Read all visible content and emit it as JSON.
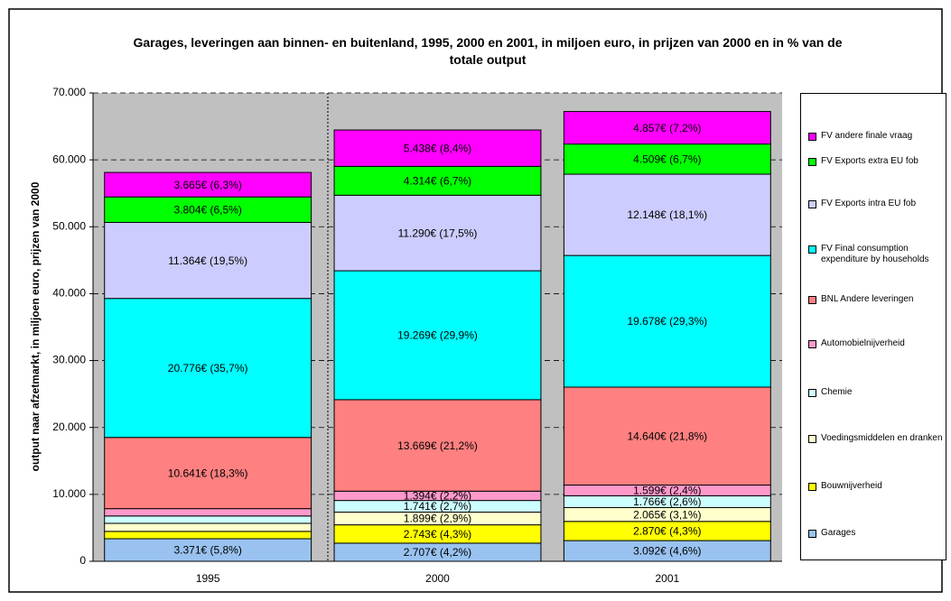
{
  "chart_data": {
    "type": "stacked-bar",
    "title": "Garages, leveringen aan binnen- en buitenland, 1995, 2000 en 2001, in miljoen euro, in prijzen van 2000 en in % van de totale output",
    "y_label": "output naar afzetmarkt, in miljoen euro, prijzen van 2000",
    "categories": [
      "1995",
      "2000",
      "2001"
    ],
    "ylim": [
      0,
      70000
    ],
    "yticks": [
      0,
      {
        "value": 10000,
        "label": "10.000"
      },
      {
        "value": 20000,
        "label": "20.000"
      },
      {
        "value": 30000,
        "label": "30.000"
      },
      {
        "value": 40000,
        "label": "40.000"
      },
      {
        "value": 50000,
        "label": "50.000"
      },
      {
        "value": 60000,
        "label": "60.000"
      },
      {
        "value": 70000,
        "label": "70.000"
      }
    ],
    "grid": true,
    "series": [
      {
        "name": "Garages",
        "color": "#99c2f0",
        "values": [
          3371,
          2707,
          3092
        ],
        "value_labels": [
          "3.371€ (5,8%)",
          "2.707€ (4,2%)",
          "3.092€ (4,6%)"
        ]
      },
      {
        "name": "Bouwnijverheid",
        "color": "#ffff00",
        "values": [
          1100,
          2743,
          2870
        ],
        "value_labels": [
          null,
          "2.743€ (4,3%)",
          "2.870€ (4,3%)"
        ]
      },
      {
        "name": "Voedingsmiddelen en dranken",
        "color": "#ffffcc",
        "values": [
          1200,
          1899,
          2065
        ],
        "value_labels": [
          null,
          "1.899€ (2,9%)",
          "2.065€ (3,1%)"
        ]
      },
      {
        "name": "Chemie",
        "color": "#ccffff",
        "values": [
          1100,
          1741,
          1766
        ],
        "value_labels": [
          null,
          "1.741€ (2,7%)",
          "1.766€ (2,6%)"
        ]
      },
      {
        "name": "Automobielnijverheid",
        "color": "#ff99cc",
        "values": [
          1100,
          1394,
          1599
        ],
        "value_labels": [
          null,
          "1.394€ (2,2%)",
          "1.599€ (2,4%)"
        ]
      },
      {
        "name": "BNL Andere leveringen",
        "color": "#ff8080",
        "values": [
          10641,
          13669,
          14640
        ],
        "value_labels": [
          "10.641€ (18,3%)",
          "13.669€ (21,2%)",
          "14.640€ (21,8%)"
        ]
      },
      {
        "name": "FV Final consumption expenditure by households",
        "color": "#00ffff",
        "values": [
          20776,
          19269,
          19678
        ],
        "value_labels": [
          "20.776€ (35,7%)",
          "19.269€ (29,9%)",
          "19.678€ (29,3%)"
        ]
      },
      {
        "name": "FV Exports intra EU fob",
        "color": "#ccccff",
        "values": [
          11364,
          11290,
          12148
        ],
        "value_labels": [
          "11.364€ (19,5%)",
          "11.290€ (17,5%)",
          "12.148€ (18,1%)"
        ]
      },
      {
        "name": "FV Exports extra EU fob",
        "color": "#00ff00",
        "values": [
          3804,
          4314,
          4509
        ],
        "value_labels": [
          "3.804€ (6,5%)",
          "4.314€ (6,7%)",
          "4.509€ (6,7%)"
        ]
      },
      {
        "name": "FV andere finale vraag",
        "color": "#ff00ff",
        "values": [
          3665,
          5438,
          4857
        ],
        "value_labels": [
          "3.665€ (6,3%)",
          "5.438€ (8,4%)",
          "4.857€ (7,2%)"
        ]
      }
    ]
  }
}
